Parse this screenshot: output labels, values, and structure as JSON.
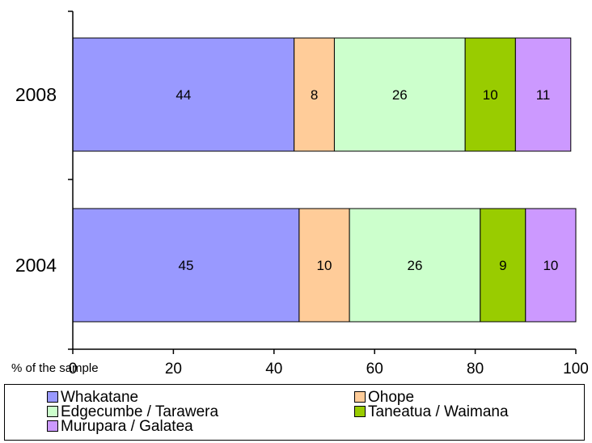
{
  "chart_data": {
    "type": "bar",
    "orientation": "horizontal",
    "stacked": true,
    "categories": [
      "2008",
      "2004"
    ],
    "series": [
      {
        "name": "Whakatane",
        "color": "#9999ff",
        "values": [
          44,
          45
        ]
      },
      {
        "name": "Ohope",
        "color": "#ffcc99",
        "values": [
          8,
          10
        ]
      },
      {
        "name": "Edgecumbe / Tarawera",
        "color": "#ccffcc",
        "values": [
          26,
          26
        ]
      },
      {
        "name": "Taneatua / Waimana",
        "color": "#99cc00",
        "values": [
          10,
          9
        ]
      },
      {
        "name": "Murupara / Galatea",
        "color": "#cc99ff",
        "values": [
          11,
          10
        ]
      }
    ],
    "xlabel": "% of the sample",
    "xlim": [
      0,
      100
    ],
    "xticks": [
      "0",
      "20",
      "40",
      "60",
      "80",
      "100"
    ],
    "grid": false,
    "legend_position": "bottom"
  }
}
